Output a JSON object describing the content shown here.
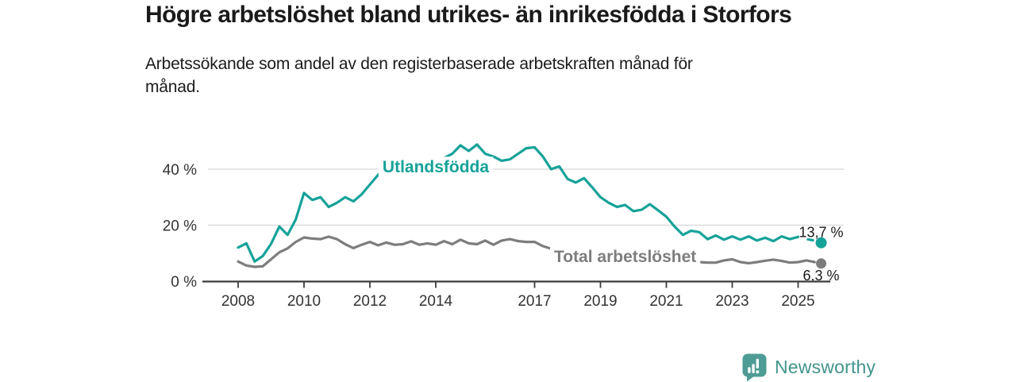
{
  "header": {
    "title": "Högre arbetslöshet bland utrikes- än inrikesfödda i Storfors",
    "subtitle_line1": "Arbetssökande som andel av den registerbaserade arbetskraften månad för",
    "subtitle_line2": "månad."
  },
  "chart_data": {
    "type": "line",
    "x_unit": "decimal year (monthly series, quarterly-approximated readings)",
    "x": [
      2008,
      2008.25,
      2008.5,
      2008.75,
      2009,
      2009.25,
      2009.5,
      2009.75,
      2010,
      2010.25,
      2010.5,
      2010.75,
      2011,
      2011.25,
      2011.5,
      2011.75,
      2012,
      2012.25,
      2012.5,
      2012.75,
      2013,
      2013.25,
      2013.5,
      2013.75,
      2014,
      2014.25,
      2014.5,
      2014.75,
      2015,
      2015.25,
      2015.5,
      2015.75,
      2016,
      2016.25,
      2016.5,
      2016.75,
      2017,
      2017.25,
      2017.5,
      2017.75,
      2018,
      2018.25,
      2018.5,
      2018.75,
      2019,
      2019.25,
      2019.5,
      2019.75,
      2020,
      2020.25,
      2020.5,
      2020.75,
      2021,
      2021.25,
      2021.5,
      2021.75,
      2022,
      2022.25,
      2022.5,
      2022.75,
      2023,
      2023.25,
      2023.5,
      2023.75,
      2024,
      2024.25,
      2024.5,
      2024.75,
      2025,
      2025.25,
      2025.5
    ],
    "series": [
      {
        "name": "Utlandsfödda",
        "color": "#16A299",
        "values": [
          12,
          13.5,
          7,
          9,
          13.3,
          19.5,
          16.5,
          22,
          31.5,
          29,
          30,
          26.5,
          28,
          30,
          28.5,
          31,
          34.5,
          38,
          40.5,
          39.5,
          40.5,
          41.5,
          42.5,
          42,
          43,
          44,
          45.5,
          48.5,
          46.5,
          48.8,
          45.5,
          44.5,
          43,
          43.5,
          45.5,
          47.5,
          47.8,
          44.5,
          40,
          41,
          36.5,
          35.2,
          36.8,
          33.5,
          30,
          28,
          26.5,
          27.2,
          25,
          25.5,
          27.5,
          25.3,
          23,
          19.5,
          16.5,
          18,
          17.5,
          15,
          16.3,
          14.8,
          16,
          14.8,
          16,
          14.5,
          15.5,
          14.3,
          16,
          15,
          15.8,
          null,
          null
        ],
        "label": {
          "text": "Utlandsfödda",
          "x": 2014.0,
          "value": 40.9
        },
        "gap_dash": {
          "x": [
            2025.3,
            2025.45
          ],
          "values": [
            14.9,
            14.6
          ]
        },
        "end_dot": {
          "x": 2025.7,
          "value": 13.7,
          "label": "13,7 %",
          "label_offset_y": -7,
          "radius": 7
        }
      },
      {
        "name": "Total arbetslöshet",
        "color": "#7D7D7D",
        "values": [
          7,
          5.6,
          5.1,
          5.3,
          7.8,
          10.3,
          11.7,
          14,
          15.6,
          15.2,
          15,
          15.9,
          15,
          13.2,
          11.8,
          13,
          14,
          12.8,
          13.8,
          13,
          13.2,
          14.2,
          13,
          13.5,
          13,
          14.3,
          13.2,
          14.8,
          13.5,
          13.2,
          14.5,
          13,
          14.5,
          15,
          14.3,
          14,
          14,
          12.5,
          11.6,
          11,
          10.5,
          10,
          9.8,
          9.5,
          9.2,
          9,
          8.8,
          8.5,
          8.3,
          8.2,
          8,
          7.8,
          7.5,
          7.3,
          7.1,
          6.9,
          6.8,
          6.6,
          6.6,
          7.4,
          7.8,
          6.8,
          6.4,
          6.8,
          7.3,
          7.7,
          7.2,
          6.6,
          6.8,
          7.4,
          6.8
        ],
        "label": {
          "text": "Total arbetslöshet",
          "x": 2019.75,
          "value": 8.8
        },
        "end_dot": {
          "x": 2025.7,
          "value": 6.3,
          "label": "6,3 %",
          "label_offset_y": 21,
          "radius": 6.5
        }
      }
    ],
    "x_ticks": [
      {
        "year": 2008,
        "label": "2008"
      },
      {
        "year": 2010,
        "label": "2010"
      },
      {
        "year": 2012,
        "label": "2012"
      },
      {
        "year": 2014,
        "label": "2014"
      },
      {
        "year": 2017,
        "label": "2017"
      },
      {
        "year": 2019,
        "label": "2019"
      },
      {
        "year": 2021,
        "label": "2021"
      },
      {
        "year": 2023,
        "label": "2023"
      },
      {
        "year": 2025,
        "label": "2025"
      }
    ],
    "y_ticks": [
      {
        "value": 0,
        "label": "0 %"
      },
      {
        "value": 20,
        "label": "20 %"
      },
      {
        "value": 40,
        "label": "40 %"
      }
    ],
    "ylim": [
      0,
      50
    ],
    "xlim": [
      2006.9,
      2026.4
    ],
    "grid": "horizontal",
    "legend": "inline-series-labels"
  },
  "footer": {
    "brand": "Newsworthy"
  },
  "colors": {
    "accent_teal": "#16A299",
    "series_gray": "#7D7D7D",
    "grid": "#D8D8D8",
    "axis": "#3C3C3C",
    "axis_text": "#333333",
    "value_label_text": "#1A1A1A",
    "logo_teal": "#4E9C95",
    "logo_text": "#42948C"
  }
}
